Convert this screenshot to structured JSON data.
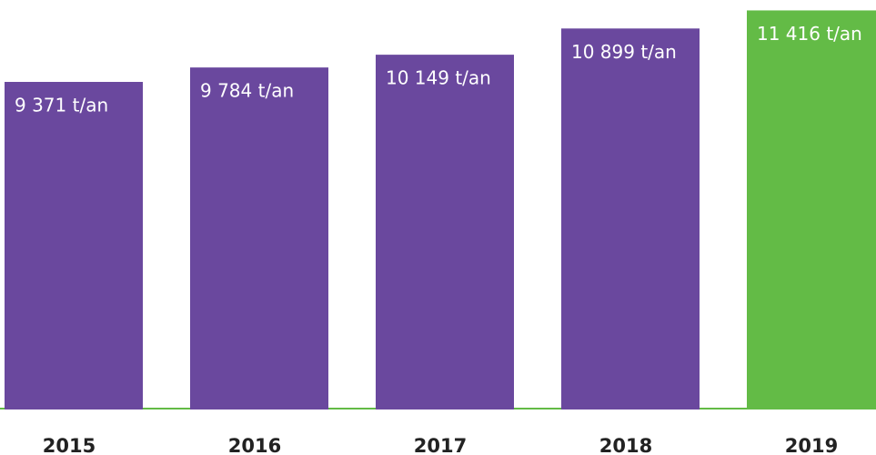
{
  "chart_data": {
    "type": "bar",
    "categories": [
      "2015",
      "2016",
      "2017",
      "2018",
      "2019"
    ],
    "values": [
      9371,
      9784,
      10149,
      10899,
      11416
    ],
    "value_labels": [
      "9 371 t/an",
      "9 784 t/an",
      "10 149 t/an",
      "10 899 t/an",
      "11 416 t/an"
    ],
    "colors": [
      "#6a489e",
      "#6a489e",
      "#6a489e",
      "#6a489e",
      "#63bb46"
    ],
    "ylim": [
      0,
      11714
    ]
  }
}
